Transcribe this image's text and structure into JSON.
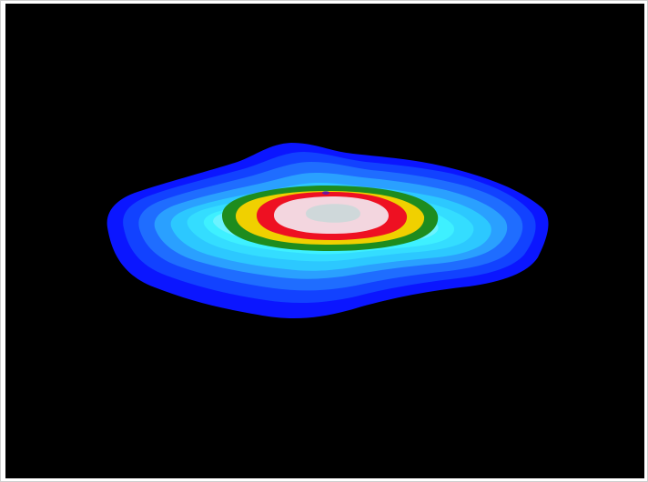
{
  "image": {
    "background_color": "#000000",
    "frame_color": "#ffffff",
    "contour_colors": [
      "#0b16ff",
      "#1242ff",
      "#1f6dff",
      "#2aa0ff",
      "#2cc8ff",
      "#34ddff",
      "#3ef0ff",
      "#6bf3ff",
      "#1e8c1e",
      "#f0d000",
      "#ee1022",
      "#f3d6df",
      "#cfd8da"
    ]
  }
}
